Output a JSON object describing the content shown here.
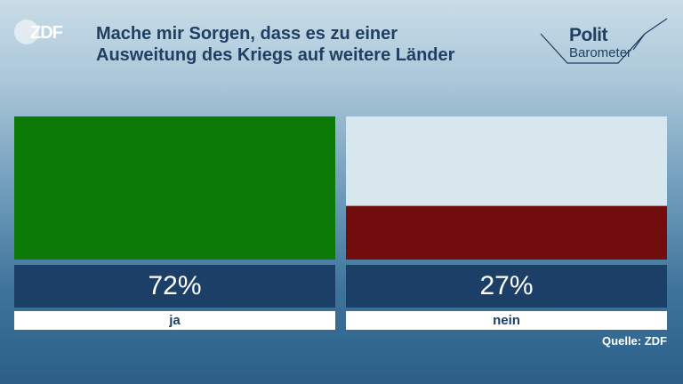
{
  "header": {
    "logo_text": "ZDF",
    "title_line1": "Mache mir Sorgen, dass es zu einer",
    "title_line2": "Ausweitung des Kriegs auf weitere Länder",
    "brand_line1": "Polit",
    "brand_line2": "Barometer"
  },
  "chart_data": {
    "type": "bar",
    "categories": [
      "ja",
      "nein"
    ],
    "values": [
      72,
      27
    ],
    "value_labels": [
      "72%",
      "27%"
    ],
    "colors": [
      "#0b7a06",
      "#730d0d"
    ],
    "track_color": "#d8e6ee",
    "ylim": [
      0,
      72
    ]
  },
  "footer": {
    "source": "Quelle: ZDF"
  }
}
